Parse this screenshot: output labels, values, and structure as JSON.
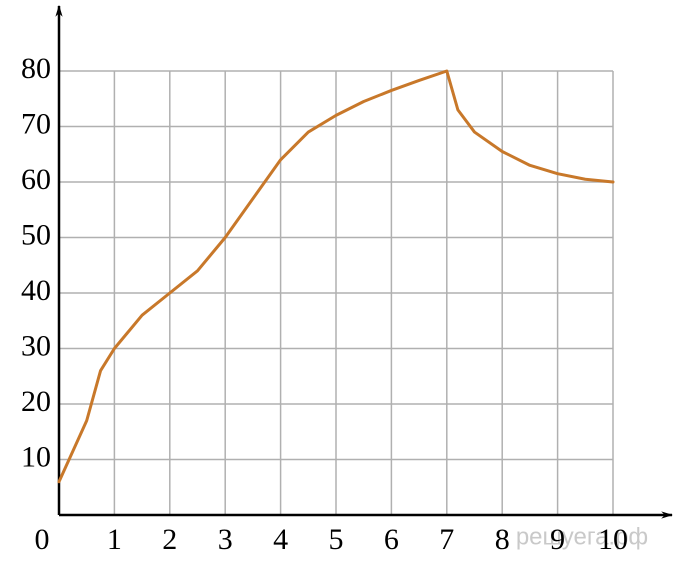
{
  "chart_data": {
    "type": "line",
    "x": [
      0,
      0.5,
      0.75,
      1,
      1.5,
      2,
      2.5,
      3,
      3.5,
      4,
      4.5,
      5,
      5.5,
      6,
      6.5,
      7,
      7.2,
      7.5,
      8,
      8.5,
      9,
      9.5,
      10
    ],
    "series": [
      {
        "color": "#c8782a",
        "values": [
          6,
          17,
          26,
          30,
          36,
          40,
          44,
          50,
          57,
          64,
          69,
          72,
          74.5,
          76.5,
          78.3,
          80,
          73,
          69,
          65.5,
          63,
          61.5,
          60.5,
          60
        ]
      }
    ],
    "xlim": [
      0,
      10
    ],
    "ylim": [
      0,
      80
    ],
    "xticks": [
      0,
      1,
      2,
      3,
      4,
      5,
      6,
      7,
      8,
      9,
      10
    ],
    "yticks": [
      10,
      20,
      30,
      40,
      50,
      60,
      70,
      80
    ],
    "grid": true,
    "watermark": "решуега.рф"
  }
}
